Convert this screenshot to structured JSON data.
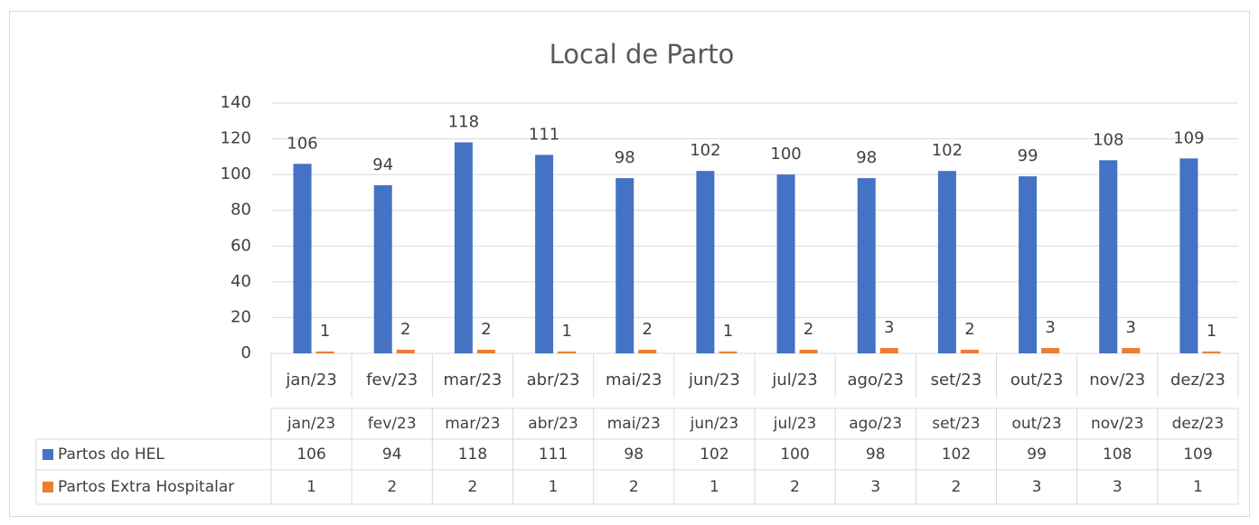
{
  "chart_data": {
    "type": "bar",
    "title": "Local de Parto",
    "categories": [
      "jan/23",
      "fev/23",
      "mar/23",
      "abr/23",
      "mai/23",
      "jun/23",
      "jul/23",
      "ago/23",
      "set/23",
      "out/23",
      "nov/23",
      "dez/23"
    ],
    "series": [
      {
        "name": "Partos do HEL",
        "color": "#4472c4",
        "values": [
          106,
          94,
          118,
          111,
          98,
          102,
          100,
          98,
          102,
          99,
          108,
          109
        ]
      },
      {
        "name": "Partos Extra Hospitalar",
        "color": "#ed7d31",
        "values": [
          1,
          2,
          2,
          1,
          2,
          1,
          2,
          3,
          2,
          3,
          3,
          1
        ]
      }
    ],
    "ylim": [
      0,
      140
    ],
    "yticks": [
      0,
      20,
      40,
      60,
      80,
      100,
      120,
      140
    ],
    "grid": true
  }
}
